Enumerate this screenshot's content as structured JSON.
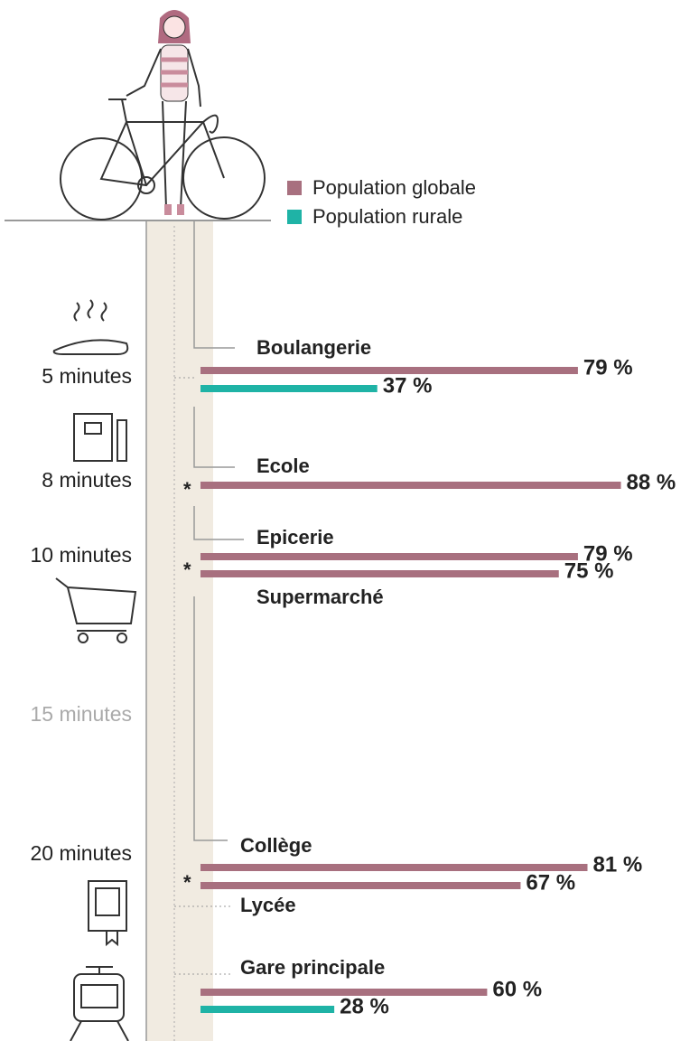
{
  "chart_data": {
    "type": "bar",
    "categories": [
      "Boulangerie",
      "Ecole",
      "Epicerie",
      "Supermarché",
      "Collège",
      "Lycée",
      "Gare principale"
    ],
    "series": [
      {
        "name": "Population globale",
        "color": "#a8707f",
        "values": [
          79,
          88,
          79,
          75,
          81,
          67,
          60
        ],
        "value_labels": [
          "79 %",
          "88 %",
          "79 %",
          "75 %",
          "81 %",
          "67 %",
          "60 %"
        ]
      },
      {
        "name": "Population rurale",
        "color": "#1fb3a6",
        "values": [
          37,
          null,
          null,
          null,
          null,
          null,
          28
        ],
        "value_labels": [
          "37 %",
          null,
          null,
          null,
          null,
          null,
          "28 %"
        ]
      }
    ],
    "time_labels": [
      "5 minutes",
      "8 minutes",
      "10 minutes",
      "15 minutes",
      "20 minutes"
    ],
    "asterisk": "*"
  }
}
